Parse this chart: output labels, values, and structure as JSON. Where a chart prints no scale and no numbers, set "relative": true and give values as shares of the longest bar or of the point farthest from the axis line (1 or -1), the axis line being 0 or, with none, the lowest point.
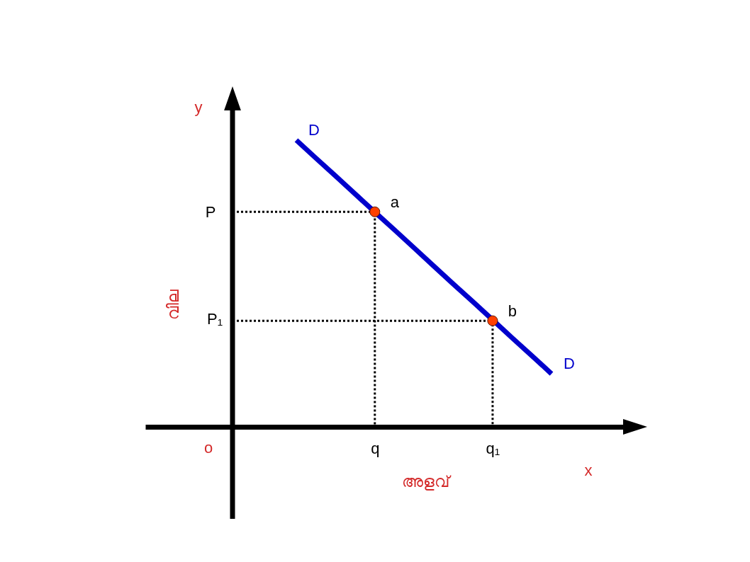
{
  "chart_data": {
    "type": "line",
    "relative": true,
    "xlabel": "അളവ്",
    "categories": [
      null,
      null,
      null,
      null,
      "q",
      null,
      null,
      null,
      null,
      null,
      "q₁",
      null,
      null,
      null
    ],
    "series": [
      {
        "name": "D",
        "color": "#0000cc",
        "line_style": "solid",
        "values": [
          1.0,
          0.937,
          0.875,
          0.812,
          0.749,
          0.687,
          0.624,
          0.561,
          0.498,
          0.436,
          0.373,
          0.31,
          0.248,
          0.185
        ]
      },
      {
        "type": "scatter",
        "color": "#ff4000",
        "marker": "circle",
        "line_style": "dotted",
        "values": [
          null,
          null,
          null,
          null,
          0.75,
          null,
          null,
          null,
          null,
          null,
          0.37,
          null,
          null,
          null
        ]
      }
    ],
    "annotations": [
      "y",
      "P",
      "വില",
      "P₁",
      "o",
      "x",
      {
        "text": "a",
        "x": "q",
        "y": 0.75
      },
      {
        "text": "b",
        "x": "q₁",
        "y": 0.37
      }
    ]
  }
}
